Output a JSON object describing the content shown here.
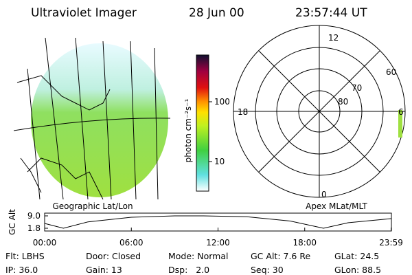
{
  "header": {
    "instrument": "Ultraviolet Imager",
    "date": "28 Jun 00",
    "time": "23:57:44 UT"
  },
  "image_panel": {
    "label": "Geographic Lat/Lon"
  },
  "colorbar": {
    "label": "photon cm⁻²s⁻¹",
    "ticks": [
      "100",
      "10"
    ]
  },
  "polar_panel": {
    "label": "Apex MLat/MLT",
    "mlt_labels": [
      "12",
      "18",
      "6",
      "0"
    ],
    "lat_labels": [
      "60",
      "70",
      "80"
    ]
  },
  "altitude_plot": {
    "ylabel": "GC Alt",
    "x": [
      0,
      1.3,
      3,
      6,
      9,
      11,
      14,
      17,
      19.3,
      21,
      23.98
    ],
    "values": [
      4.6,
      1.8,
      5.5,
      8.2,
      9.0,
      9.0,
      8.5,
      6.0,
      1.8,
      5.0,
      7.4
    ],
    "xlim": [
      0,
      24
    ],
    "ylim": [
      1.8,
      9.0
    ],
    "xticks": [
      {
        "value": 0,
        "label": "00:00"
      },
      {
        "value": 6,
        "label": "06:00"
      },
      {
        "value": 12,
        "label": "12:00"
      },
      {
        "value": 18,
        "label": "18:00"
      },
      {
        "value": 23.98,
        "label": "23:59"
      }
    ],
    "yticks": [
      {
        "value": 9.0,
        "label": "9.0"
      },
      {
        "value": 1.8,
        "label": "1.8"
      }
    ]
  },
  "status": [
    [
      "Flt: LBHS",
      "Door: Closed",
      "Mode: Normal",
      "GC Alt: 7.6 Re",
      "GLat: 24.5"
    ],
    [
      "IP: 36.0",
      "Gain: 13",
      "Dsp:   2.0",
      "Seq: 30",
      "GLon: 88.5"
    ]
  ]
}
